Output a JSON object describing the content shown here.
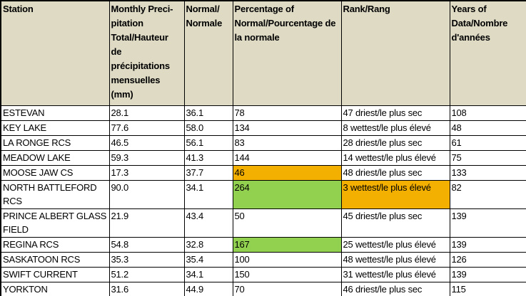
{
  "colors": {
    "header_bg": "#dedac4",
    "row_bg": "#ffffff",
    "grid": "#000000",
    "text": "#000000",
    "highlight_orange": "#f4b000",
    "highlight_green": "#92d050"
  },
  "table": {
    "columns": [
      {
        "key": "station",
        "label": "Station"
      },
      {
        "key": "monthly",
        "label": "Monthly Preci-pitation Total/Hauteur de précipitations mensuelles (mm)"
      },
      {
        "key": "normal",
        "label": "Normal/ Normale"
      },
      {
        "key": "pct",
        "label": "Percentage of Normal/Pourcentage de la normale"
      },
      {
        "key": "rank",
        "label": "Rank/Rang"
      },
      {
        "key": "years",
        "label": "Years of Data/Nombre d'années"
      }
    ],
    "rows": [
      {
        "station": "ESTEVAN",
        "monthly": "28.1",
        "normal": "36.1",
        "pct": "78",
        "rank": "47 driest/le plus sec",
        "years": "108",
        "highlights": {}
      },
      {
        "station": "KEY LAKE",
        "monthly": "77.6",
        "normal": "58.0",
        "pct": "134",
        "rank": "8 wettest/le plus élevé",
        "years": "48",
        "highlights": {}
      },
      {
        "station": "LA RONGE RCS",
        "monthly": "46.5",
        "normal": "56.1",
        "pct": "83",
        "rank": "28 driest/le plus sec",
        "years": "61",
        "highlights": {}
      },
      {
        "station": "MEADOW LAKE",
        "monthly": "59.3",
        "normal": "41.3",
        "pct": "144",
        "rank": "14 wettest/le plus élevé",
        "years": "75",
        "highlights": {}
      },
      {
        "station": "MOOSE JAW CS",
        "monthly": "17.3",
        "normal": "37.7",
        "pct": "46",
        "rank": "48 driest/le plus sec",
        "years": "133",
        "highlights": {
          "pct": "orange"
        }
      },
      {
        "station": "NORTH BATTLEFORD RCS",
        "monthly": "90.0",
        "normal": "34.1",
        "pct": "264",
        "rank": "3 wettest/le plus élevé",
        "years": "82",
        "highlights": {
          "pct": "green",
          "rank": "orange"
        }
      },
      {
        "station": "PRINCE ALBERT GLASS FIELD",
        "monthly": "21.9",
        "normal": "43.4",
        "pct": "50",
        "rank": "45 driest/le plus sec",
        "years": "139",
        "highlights": {}
      },
      {
        "station": "REGINA RCS",
        "monthly": "54.8",
        "normal": "32.8",
        "pct": "167",
        "rank": "25 wettest/le plus élevé",
        "years": "139",
        "highlights": {
          "pct": "green"
        }
      },
      {
        "station": "SASKATOON RCS",
        "monthly": "35.3",
        "normal": "35.4",
        "pct": "100",
        "rank": "48 wettest/le plus élevé",
        "years": "126",
        "highlights": {}
      },
      {
        "station": "SWIFT CURRENT",
        "monthly": "51.2",
        "normal": "34.1",
        "pct": "150",
        "rank": "31 wettest/le plus élevé",
        "years": "139",
        "highlights": {}
      },
      {
        "station": "YORKTON",
        "monthly": "31.6",
        "normal": "44.9",
        "pct": "70",
        "rank": "46 driest/le plus sec",
        "years": "115",
        "highlights": {}
      }
    ]
  }
}
